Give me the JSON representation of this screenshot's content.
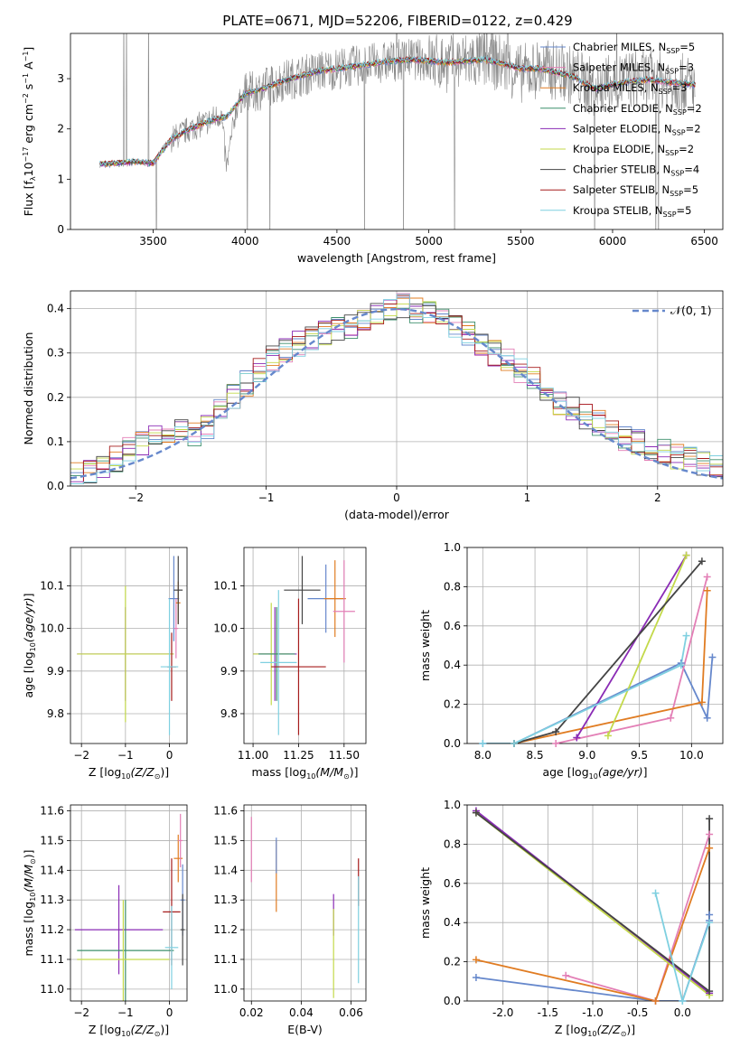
{
  "figure": {
    "title": "PLATE=0671, MJD=52206, FIBERID=0122, z=0.429"
  },
  "colors": {
    "Chabrier MILES": "#6688cc",
    "Salpeter MILES": "#e37fb6",
    "Kroupa MILES": "#e07c22",
    "Chabrier ELODIE": "#3c8f6b",
    "Salpeter ELODIE": "#8a2bb5",
    "Kroupa ELODIE": "#c3d94a",
    "Chabrier STELIB": "#444444",
    "Salpeter STELIB": "#a61c1c",
    "Kroupa STELIB": "#7fd0e0"
  },
  "chart_data": [
    {
      "id": "spectrum",
      "type": "line",
      "title": "PLATE=0671, MJD=52206, FIBERID=0122, z=0.429",
      "xlabel": "wavelength [Angstrom, rest frame]",
      "ylabel": "Flux [f_λ 10^-17 erg cm^-2 s^-1 A^-1]",
      "xlim": [
        3050,
        6600
      ],
      "ylim": [
        0,
        3.9
      ],
      "xticks": [
        3500,
        4000,
        4500,
        5000,
        5500,
        6000,
        6500
      ],
      "yticks": [
        0,
        1,
        2,
        3
      ],
      "grid": false,
      "legend_position": "top-right",
      "legend": [
        {
          "model": "Chabrier MILES",
          "nssp": "5"
        },
        {
          "model": "Salpeter MILES",
          "nssp": "3"
        },
        {
          "model": "Kroupa MILES",
          "nssp": "3"
        },
        {
          "model": "Chabrier ELODIE",
          "nssp": "2"
        },
        {
          "model": "Salpeter ELODIE",
          "nssp": "2"
        },
        {
          "model": "Kroupa ELODIE",
          "nssp": "2"
        },
        {
          "model": "Chabrier STELIB",
          "nssp": "4"
        },
        {
          "model": "Salpeter STELIB",
          "nssp": "5"
        },
        {
          "model": "Kroupa STELIB",
          "nssp": "5"
        }
      ],
      "series": [
        {
          "name": "data",
          "color": "#888888",
          "x": [
            3210,
            3300,
            3400,
            3500,
            3550,
            3600,
            3700,
            3800,
            3870,
            3900,
            3950,
            4000,
            4100,
            4200,
            4300,
            4400,
            4500,
            4600,
            4700,
            4800,
            4900,
            5000,
            5100,
            5200,
            5300,
            5400,
            5500,
            5600,
            5700,
            5800,
            5900,
            6000,
            6100,
            6200,
            6300,
            6400,
            6450
          ],
          "y": [
            1.3,
            1.3,
            1.35,
            1.3,
            1.6,
            1.8,
            2.0,
            2.15,
            2.3,
            1.2,
            2.4,
            2.7,
            2.8,
            2.95,
            3.05,
            3.15,
            3.2,
            3.25,
            3.3,
            3.35,
            3.4,
            3.35,
            3.3,
            3.35,
            3.4,
            3.3,
            3.1,
            3.2,
            3.15,
            3.05,
            2.8,
            2.9,
            3.0,
            3.0,
            2.95,
            2.9,
            2.85
          ]
        },
        {
          "name": "model",
          "color": "#7fd0e0",
          "x": [
            3210,
            3300,
            3400,
            3500,
            3600,
            3700,
            3800,
            3900,
            4000,
            4100,
            4200,
            4300,
            4400,
            4500,
            4600,
            4700,
            4800,
            4900,
            5000,
            5100,
            5200,
            5300,
            5400,
            5500,
            5600,
            5700,
            5800,
            5900,
            6000,
            6100,
            6200,
            6300,
            6400,
            6450
          ],
          "y": [
            1.3,
            1.32,
            1.35,
            1.32,
            1.8,
            2.0,
            2.15,
            2.25,
            2.7,
            2.8,
            2.95,
            3.05,
            3.15,
            3.2,
            3.25,
            3.3,
            3.35,
            3.38,
            3.35,
            3.32,
            3.35,
            3.38,
            3.3,
            3.2,
            3.2,
            3.12,
            3.02,
            2.8,
            2.88,
            2.95,
            2.98,
            2.93,
            2.9,
            2.87
          ]
        }
      ]
    },
    {
      "id": "residuals",
      "type": "line",
      "xlabel": "(data-model)/error",
      "ylabel": "Normed distribution",
      "xlim": [
        -2.5,
        2.5
      ],
      "ylim": [
        0,
        0.44
      ],
      "xticks": [
        -2,
        -1,
        0,
        1,
        2
      ],
      "yticks": [
        0.0,
        0.1,
        0.2,
        0.3,
        0.4
      ],
      "grid": true,
      "legend_position": "top-right",
      "gaussian_label": "𝒩(0, 1)",
      "histogram": {
        "x": [
          -2.5,
          -2.25,
          -2.0,
          -1.75,
          -1.5,
          -1.25,
          -1.0,
          -0.75,
          -0.5,
          -0.25,
          0.0,
          0.25,
          0.5,
          0.75,
          1.0,
          1.25,
          1.5,
          1.75,
          2.0,
          2.25,
          2.5
        ],
        "y": [
          0.02,
          0.04,
          0.09,
          0.12,
          0.12,
          0.2,
          0.28,
          0.32,
          0.35,
          0.37,
          0.41,
          0.39,
          0.35,
          0.3,
          0.25,
          0.19,
          0.15,
          0.11,
          0.08,
          0.06,
          0.04
        ]
      }
    },
    {
      "id": "age-vs-metallicity",
      "type": "scatter",
      "xlabel": "Z [log10(Z/Z⊙)]",
      "ylabel": "age [log10(age/yr)]",
      "xlim": [
        -2.25,
        0.4
      ],
      "ylim": [
        9.73,
        10.19
      ],
      "xticks": [
        -2,
        -1,
        0
      ],
      "yticks": [
        9.8,
        9.9,
        10.0,
        10.1
      ],
      "grid": true,
      "points": [
        {
          "model": "Salpeter ELODIE",
          "x": -1.0,
          "y": 9.94,
          "xerr": 1.1,
          "yerr": 0.11
        },
        {
          "model": "Kroupa ELODIE",
          "x": -1.0,
          "y": 9.94,
          "xerr": 1.1,
          "yerr": 0.16
        },
        {
          "model": "Chabrier MILES",
          "x": 0.1,
          "y": 10.07,
          "xerr": 0.12,
          "yerr": 0.1
        },
        {
          "model": "Salpeter MILES",
          "x": 0.15,
          "y": 10.0,
          "xerr": 0.05,
          "yerr": 0.07
        },
        {
          "model": "Kroupa MILES",
          "x": 0.2,
          "y": 10.06,
          "xerr": 0.05,
          "yerr": 0.05
        },
        {
          "model": "Chabrier STELIB",
          "x": 0.2,
          "y": 10.09,
          "xerr": 0.1,
          "yerr": 0.08
        },
        {
          "model": "Salpeter STELIB",
          "x": 0.05,
          "y": 9.91,
          "xerr": 0.1,
          "yerr": 0.08
        },
        {
          "model": "Kroupa STELIB",
          "x": 0.0,
          "y": 9.91,
          "xerr": 0.2,
          "yerr": 0.16
        }
      ]
    },
    {
      "id": "age-vs-mass",
      "type": "scatter",
      "xlabel": "mass [log10(M/M⊙)]",
      "ylabel": "",
      "xlim": [
        10.95,
        11.62
      ],
      "ylim": [
        9.73,
        10.19
      ],
      "xticks": [
        11.0,
        11.25,
        11.5
      ],
      "yticks": [
        9.8,
        9.9,
        10.0,
        10.1
      ],
      "grid": true,
      "points": [
        {
          "model": "Salpeter ELODIE",
          "x": 11.12,
          "y": 9.94,
          "xerr": 0.12,
          "yerr": 0.11
        },
        {
          "model": "Kroupa ELODIE",
          "x": 11.1,
          "y": 9.94,
          "xerr": 0.1,
          "yerr": 0.12
        },
        {
          "model": "Chabrier ELODIE",
          "x": 11.13,
          "y": 9.94,
          "xerr": 0.1,
          "yerr": 0.11
        },
        {
          "model": "Kroupa STELIB",
          "x": 11.14,
          "y": 9.92,
          "xerr": 0.1,
          "yerr": 0.17
        },
        {
          "model": "Chabrier STELIB",
          "x": 11.27,
          "y": 10.09,
          "xerr": 0.1,
          "yerr": 0.08
        },
        {
          "model": "Salpeter STELIB",
          "x": 11.25,
          "y": 9.91,
          "xerr": 0.15,
          "yerr": 0.16
        },
        {
          "model": "Chabrier MILES",
          "x": 11.4,
          "y": 10.07,
          "xerr": 0.1,
          "yerr": 0.08
        },
        {
          "model": "Kroupa MILES",
          "x": 11.45,
          "y": 10.07,
          "xerr": 0.06,
          "yerr": 0.09
        },
        {
          "model": "Salpeter MILES",
          "x": 11.5,
          "y": 10.04,
          "xerr": 0.06,
          "yerr": 0.12
        }
      ]
    },
    {
      "id": "mass-weight-vs-age",
      "type": "line",
      "xlabel": "age [log10(age/yr)]",
      "ylabel": "mass weight",
      "xlim": [
        7.85,
        10.3
      ],
      "ylim": [
        0,
        1
      ],
      "xticks": [
        8.0,
        8.5,
        9.0,
        9.5,
        10.0
      ],
      "yticks": [
        0.0,
        0.2,
        0.4,
        0.6,
        0.8,
        1.0
      ],
      "grid": true,
      "series": [
        {
          "model": "Chabrier MILES",
          "x": [
            8.0,
            8.3,
            9.9,
            10.15,
            10.2
          ],
          "y": [
            0.0,
            0.0,
            0.41,
            0.13,
            0.44
          ]
        },
        {
          "model": "Salpeter MILES",
          "x": [
            8.7,
            9.8,
            10.15
          ],
          "y": [
            0.0,
            0.13,
            0.85
          ]
        },
        {
          "model": "Kroupa MILES",
          "x": [
            8.3,
            10.1,
            10.15
          ],
          "y": [
            0.0,
            0.21,
            0.78
          ]
        },
        {
          "model": "Salpeter ELODIE",
          "x": [
            8.9,
            9.95
          ],
          "y": [
            0.03,
            0.96
          ]
        },
        {
          "model": "Kroupa ELODIE",
          "x": [
            9.2,
            9.95
          ],
          "y": [
            0.04,
            0.96
          ]
        },
        {
          "model": "Chabrier STELIB",
          "x": [
            8.3,
            8.7,
            10.1
          ],
          "y": [
            0.0,
            0.06,
            0.93
          ]
        },
        {
          "model": "Kroupa STELIB",
          "x": [
            8.0,
            8.3,
            9.9,
            9.95
          ],
          "y": [
            0.0,
            0.0,
            0.4,
            0.55
          ]
        }
      ]
    },
    {
      "id": "mass-vs-metallicity",
      "type": "scatter",
      "xlabel": "Z [log10(Z/Z⊙)]",
      "ylabel": "mass [log10(M/M⊙)]",
      "xlim": [
        -2.25,
        0.4
      ],
      "ylim": [
        10.96,
        11.62
      ],
      "xticks": [
        -2,
        -1,
        0
      ],
      "yticks": [
        11.0,
        11.1,
        11.2,
        11.3,
        11.4,
        11.5,
        11.6
      ],
      "grid": true,
      "points": [
        {
          "model": "Salpeter ELODIE",
          "x": -1.15,
          "y": 11.2,
          "xerr": 1.0,
          "yerr": 0.15
        },
        {
          "model": "Chabrier ELODIE",
          "x": -1.0,
          "y": 11.13,
          "xerr": 1.1,
          "yerr": 0.17
        },
        {
          "model": "Kroupa ELODIE",
          "x": -1.05,
          "y": 11.1,
          "xerr": 1.05,
          "yerr": 0.2
        },
        {
          "model": "Salpeter STELIB",
          "x": 0.05,
          "y": 11.26,
          "xerr": 0.2,
          "yerr": 0.18
        },
        {
          "model": "Kroupa STELIB",
          "x": 0.05,
          "y": 11.14,
          "xerr": 0.15,
          "yerr": 0.14
        },
        {
          "model": "Kroupa MILES",
          "x": 0.2,
          "y": 11.44,
          "xerr": 0.1,
          "yerr": 0.08
        },
        {
          "model": "Salpeter MILES",
          "x": 0.25,
          "y": 11.5,
          "xerr": 0.05,
          "yerr": 0.09
        },
        {
          "model": "Chabrier MILES",
          "x": 0.3,
          "y": 11.3,
          "xerr": 0.05,
          "yerr": 0.12
        },
        {
          "model": "Chabrier STELIB",
          "x": 0.3,
          "y": 11.2,
          "xerr": 0.05,
          "yerr": 0.12
        }
      ]
    },
    {
      "id": "mass-vs-ebv",
      "type": "scatter",
      "xlabel": "E(B-V)",
      "ylabel": "",
      "xlim": [
        0.017,
        0.066
      ],
      "ylim": [
        10.96,
        11.62
      ],
      "xticks": [
        0.02,
        0.04,
        0.06
      ],
      "yticks": [
        11.0,
        11.1,
        11.2,
        11.3,
        11.4,
        11.5,
        11.6
      ],
      "grid": true,
      "points": [
        {
          "model": "Salpeter MILES",
          "x": 0.02,
          "y": 11.47,
          "xerr": 0,
          "yerr": 0.11
        },
        {
          "model": "Kroupa MILES",
          "x": 0.03,
          "y": 11.38,
          "xerr": 0,
          "yerr": 0.12
        },
        {
          "model": "Chabrier MILES",
          "x": 0.03,
          "y": 11.45,
          "xerr": 0,
          "yerr": 0.06
        },
        {
          "model": "Salpeter ELODIE",
          "x": 0.053,
          "y": 11.25,
          "xerr": 0,
          "yerr": 0.07
        },
        {
          "model": "Kroupa ELODIE",
          "x": 0.053,
          "y": 11.12,
          "xerr": 0,
          "yerr": 0.15
        },
        {
          "model": "Salpeter STELIB",
          "x": 0.063,
          "y": 11.36,
          "xerr": 0,
          "yerr": 0.08
        },
        {
          "model": "Kroupa STELIB",
          "x": 0.063,
          "y": 11.2,
          "xerr": 0,
          "yerr": 0.18
        }
      ]
    },
    {
      "id": "mass-weight-vs-metallicity",
      "type": "line",
      "xlabel": "Z [log10(Z/Z⊙)]",
      "ylabel": "mass weight",
      "xlim": [
        -2.4,
        0.45
      ],
      "ylim": [
        0,
        1
      ],
      "xticks": [
        -2.0,
        -1.5,
        -1.0,
        -0.5,
        0.0
      ],
      "yticks": [
        0.0,
        0.2,
        0.4,
        0.6,
        0.8,
        1.0
      ],
      "grid": true,
      "series": [
        {
          "model": "Chabrier MILES",
          "x": [
            -2.3,
            -0.3,
            0.0,
            0.3,
            0.3
          ],
          "y": [
            0.12,
            0.0,
            0.0,
            0.41,
            0.44
          ]
        },
        {
          "model": "Salpeter MILES",
          "x": [
            -1.3,
            -0.3,
            0.3
          ],
          "y": [
            0.13,
            0.0,
            0.85
          ]
        },
        {
          "model": "Kroupa MILES",
          "x": [
            -2.3,
            -0.3,
            0.3
          ],
          "y": [
            0.21,
            0.0,
            0.78
          ]
        },
        {
          "model": "Salpeter ELODIE",
          "x": [
            -2.3,
            0.3
          ],
          "y": [
            0.97,
            0.04
          ]
        },
        {
          "model": "Kroupa ELODIE",
          "x": [
            -2.3,
            0.3
          ],
          "y": [
            0.96,
            0.03
          ]
        },
        {
          "model": "Chabrier STELIB",
          "x": [
            -2.3,
            0.3,
            0.3
          ],
          "y": [
            0.96,
            0.05,
            0.93
          ]
        },
        {
          "model": "Kroupa STELIB",
          "x": [
            -0.3,
            0.0,
            0.3
          ],
          "y": [
            0.55,
            0.0,
            0.4
          ]
        }
      ]
    }
  ]
}
